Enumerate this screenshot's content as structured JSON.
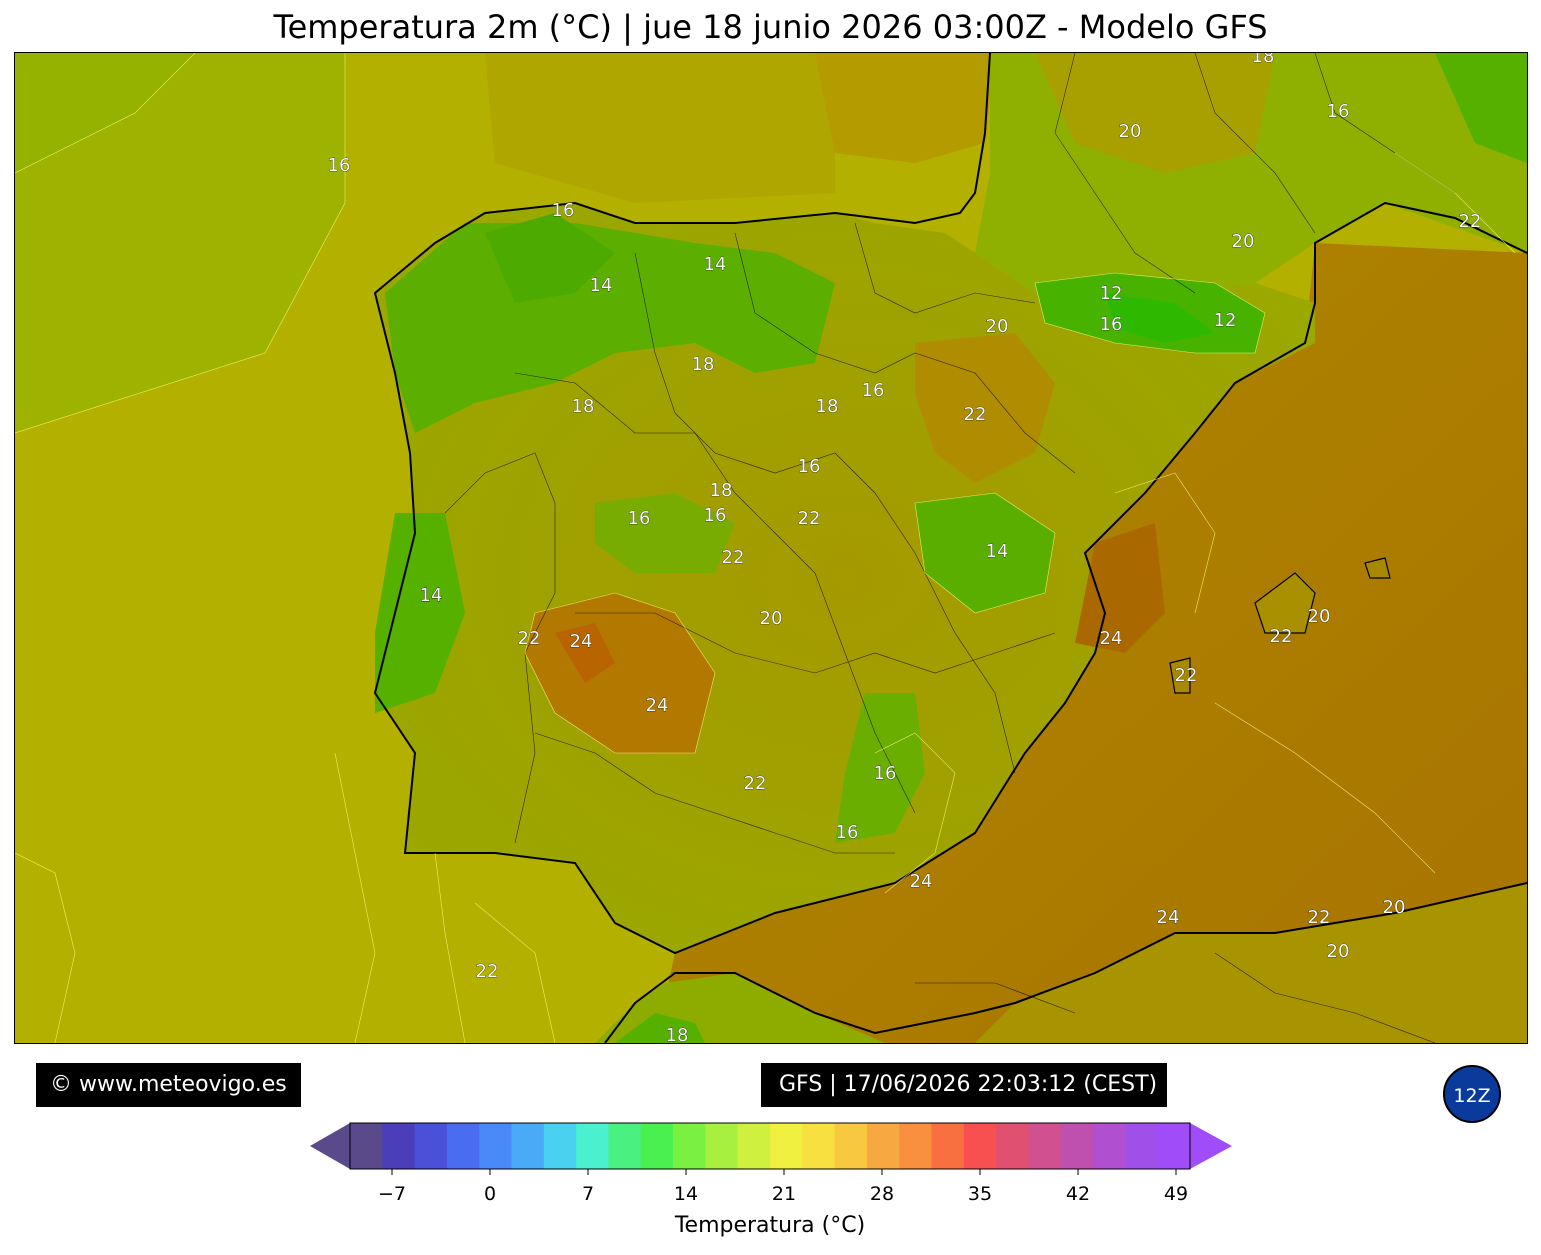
{
  "title": "Temperatura 2m (°C) | jue 18 junio 2026 03:00Z - Modelo GFS",
  "copyright": "© www.meteovigo.es",
  "run_info": "GFS | 17/06/2026 22:03:12 (CEST)",
  "run_badge": "12Z",
  "colorbar": {
    "label": "Temperatura (°C)",
    "ticks": [
      "−7",
      "0",
      "7",
      "14",
      "21",
      "28",
      "35",
      "42",
      "49"
    ],
    "colors": [
      "#5a4a8c",
      "#4a3fb8",
      "#4a50d8",
      "#4a6cf0",
      "#4a8af8",
      "#4aaaf8",
      "#4ad0f0",
      "#4af0d0",
      "#4af080",
      "#4af050",
      "#7af040",
      "#a8f040",
      "#d0f040",
      "#f0f040",
      "#f8e040",
      "#f8c840",
      "#f8a840",
      "#f89040",
      "#f87040",
      "#f85050",
      "#e05070",
      "#d05090",
      "#c050b0",
      "#b050d0",
      "#a050e8",
      "#a04cf8"
    ]
  },
  "colors": {
    "ocean": "#b3b000",
    "atlantic_north": "#9bb400",
    "mediterranean": "#b38400",
    "land_green": "#4caf00",
    "land_warm": "#b07000"
  },
  "contour_labels": [
    {
      "text": "18"
    },
    {
      "text": "16"
    },
    {
      "text": "20"
    },
    {
      "text": "22"
    },
    {
      "text": "16"
    },
    {
      "text": "20"
    },
    {
      "text": "14"
    },
    {
      "text": "14"
    },
    {
      "text": "14"
    },
    {
      "text": "12"
    },
    {
      "text": "12"
    },
    {
      "text": "20"
    },
    {
      "text": "16"
    },
    {
      "text": "18"
    },
    {
      "text": "18"
    },
    {
      "text": "16"
    },
    {
      "text": "18"
    },
    {
      "text": "22"
    },
    {
      "text": "16"
    },
    {
      "text": "18"
    },
    {
      "text": "16"
    },
    {
      "text": "16"
    },
    {
      "text": "16"
    },
    {
      "text": "22"
    },
    {
      "text": "22"
    },
    {
      "text": "14"
    },
    {
      "text": "14"
    },
    {
      "text": "20"
    },
    {
      "text": "22"
    },
    {
      "text": "24"
    },
    {
      "text": "24"
    },
    {
      "text": "20"
    },
    {
      "text": "22"
    },
    {
      "text": "22"
    },
    {
      "text": "24"
    },
    {
      "text": "22"
    },
    {
      "text": "16"
    },
    {
      "text": "16"
    },
    {
      "text": "24"
    },
    {
      "text": "24"
    },
    {
      "text": "22"
    },
    {
      "text": "20"
    },
    {
      "text": "20"
    },
    {
      "text": "22"
    },
    {
      "text": "18"
    }
  ]
}
